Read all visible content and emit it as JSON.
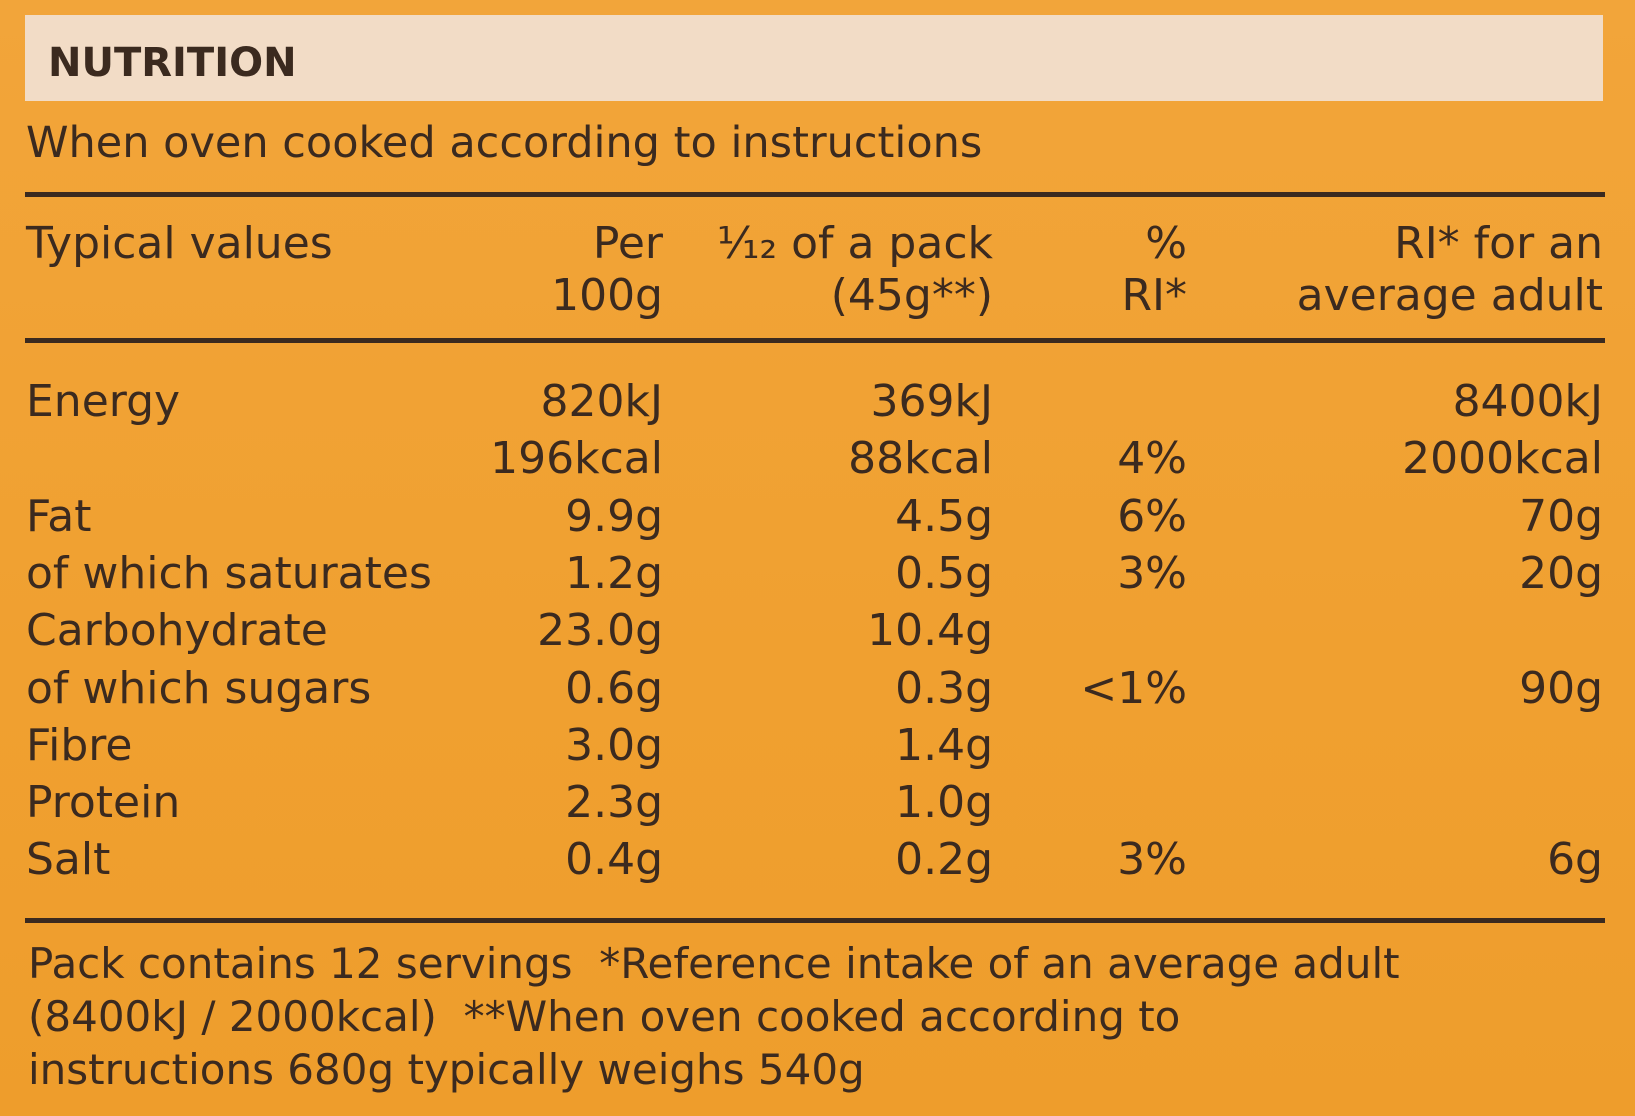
{
  "header": {
    "title": "NUTRITION",
    "subtitle": "When oven cooked according to instructions"
  },
  "table": {
    "columns": [
      [
        "Typical values"
      ],
      [
        "Per",
        "100g"
      ],
      [
        "¹⁄₁₂ of a pack",
        "(45g**)"
      ],
      [
        "%",
        "RI*"
      ],
      [
        "RI* for an",
        "average adult"
      ]
    ],
    "rows": [
      [
        "Energy",
        "820kJ",
        "369kJ",
        null,
        "8400kJ"
      ],
      [
        null,
        "196kcal",
        "88kcal",
        "4%",
        "2000kcal"
      ],
      [
        "Fat",
        "9.9g",
        "4.5g",
        "6%",
        "70g"
      ],
      [
        "of which saturates",
        "1.2g",
        "0.5g",
        "3%",
        "20g"
      ],
      [
        "Carbohydrate",
        "23.0g",
        "10.4g",
        null,
        null
      ],
      [
        "of which sugars",
        "0.6g",
        "0.3g",
        "<1%",
        "90g"
      ],
      [
        "Fibre",
        "3.0g",
        "1.4g",
        null,
        null
      ],
      [
        "Protein",
        "2.3g",
        "1.0g",
        null,
        null
      ],
      [
        "Salt",
        "0.4g",
        "0.2g",
        "3%",
        "6g"
      ]
    ]
  },
  "footnote": [
    "Pack contains 12 servings  *Reference intake of an average adult",
    "(8400kJ / 2000kcal)  **When oven cooked according to",
    "instructions 680g typically weighs 540g"
  ]
}
